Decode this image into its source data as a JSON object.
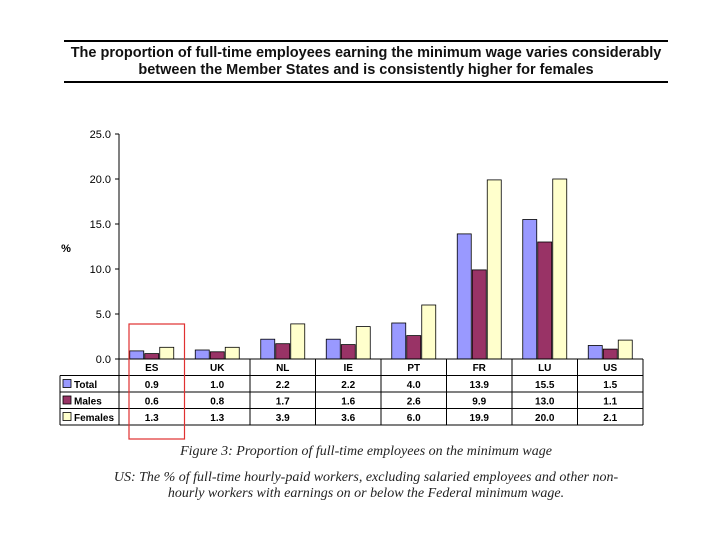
{
  "title_line1": "The proportion of full-time employees earning the minimum wage varies considerably",
  "title_line2": "between the Member States and is consistently higher for females",
  "figure_caption": "Figure 3: Proportion of full-time employees on the minimum wage",
  "note": "US: The % of full-time hourly-paid workers, excluding salaried employees and other non-hourly workers with earnings on or below the Federal minimum wage.",
  "highlight_color": "#e03030",
  "chart_data": {
    "type": "bar",
    "title": "The proportion of full-time employees earning the minimum wage varies considerably between the Member States and is consistently higher for females",
    "ylabel": "%",
    "xlabel": "",
    "ylim": [
      0,
      25
    ],
    "yticks": [
      "0.0",
      "5.0",
      "10.0",
      "15.0",
      "20.0",
      "25.0"
    ],
    "categories": [
      "ES",
      "UK",
      "NL",
      "IE",
      "PT",
      "FR",
      "LU",
      "US"
    ],
    "series": [
      {
        "name": "Total",
        "color": "#9999ff",
        "values": [
          0.9,
          1.0,
          2.2,
          2.2,
          4.0,
          13.9,
          15.5,
          1.5
        ],
        "labels": [
          "0.9",
          "1.0",
          "2.2",
          "2.2",
          "4.0",
          "13.9",
          "15.5",
          "1.5"
        ]
      },
      {
        "name": "Males",
        "color": "#993366",
        "values": [
          0.6,
          0.8,
          1.7,
          1.6,
          2.6,
          9.9,
          13.0,
          1.1
        ],
        "labels": [
          "0.6",
          "0.8",
          "1.7",
          "1.6",
          "2.6",
          "9.9",
          "13.0",
          "1.1"
        ]
      },
      {
        "name": "Females",
        "color": "#ffffcc",
        "values": [
          1.3,
          1.3,
          3.9,
          3.6,
          6.0,
          19.9,
          20.0,
          2.1
        ],
        "labels": [
          "1.3",
          "1.3",
          "3.9",
          "3.6",
          "6.0",
          "19.9",
          "20.0",
          "2.1"
        ]
      }
    ],
    "legend": "data-table-left",
    "grid": false,
    "annotation": "red box highlighting ES column"
  }
}
